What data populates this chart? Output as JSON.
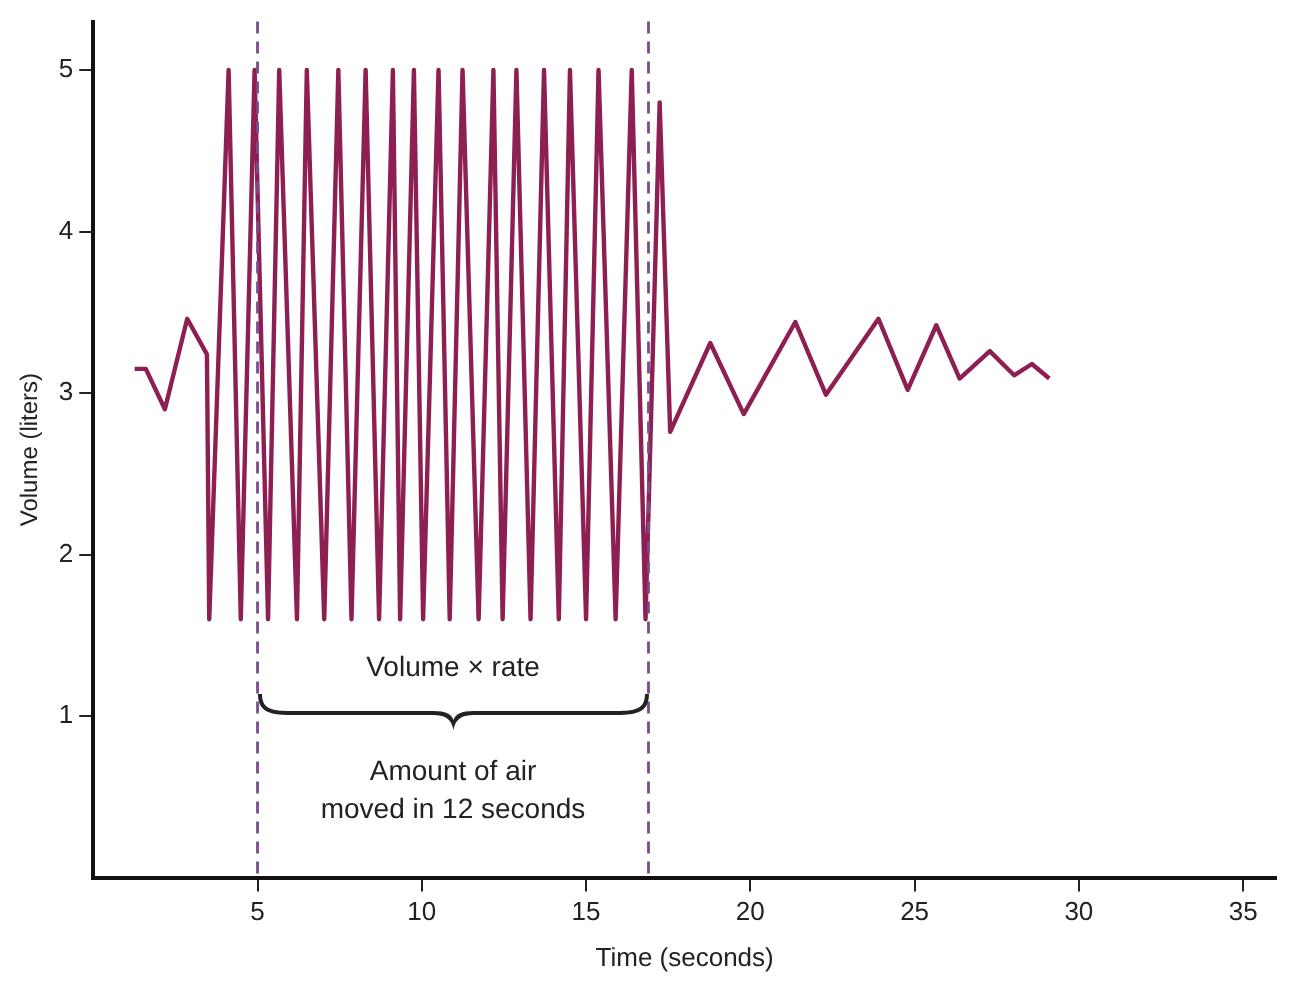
{
  "chart_data": {
    "type": "line",
    "xlabel": "Time (seconds)",
    "ylabel": "Volume (liters)",
    "series": [
      {
        "color": "#8e1f52",
        "x": [
          1.26,
          1.6,
          2.18,
          2.86,
          3.46,
          3.53,
          4.12,
          4.49,
          4.91,
          5.32,
          5.66,
          6.2,
          6.5,
          7.03,
          7.46,
          7.86,
          8.29,
          8.7,
          9.12,
          9.34,
          9.76,
          10.04,
          10.51,
          10.85,
          11.24,
          11.73,
          12.18,
          12.46,
          12.88,
          13.31,
          13.72,
          14.17,
          14.51,
          15.0,
          15.38,
          15.9,
          16.39,
          16.81,
          17.24,
          17.56,
          18.78,
          19.8,
          21.37,
          22.3,
          23.9,
          24.79,
          25.66,
          26.37,
          27.29,
          28.03,
          28.57,
          29.1
        ],
        "values": [
          3.15,
          3.15,
          2.9,
          3.46,
          3.24,
          1.6,
          5.0,
          1.6,
          5.0,
          1.6,
          5.0,
          1.6,
          5.0,
          1.6,
          5.0,
          1.6,
          5.0,
          1.6,
          5.0,
          1.6,
          5.0,
          1.6,
          5.0,
          1.6,
          5.0,
          1.6,
          5.0,
          1.6,
          5.0,
          1.6,
          5.0,
          1.6,
          5.0,
          1.6,
          5.0,
          1.6,
          5.0,
          1.6,
          4.8,
          2.76,
          3.31,
          2.87,
          3.44,
          2.99,
          3.46,
          3.02,
          3.42,
          3.09,
          3.26,
          3.11,
          3.18,
          3.09
        ]
      }
    ],
    "xlim": [
      0,
      36
    ],
    "xticks": [
      5,
      10,
      15,
      20,
      25,
      30,
      35
    ],
    "ylim": [
      0,
      5.3
    ],
    "yticks": [
      1,
      2,
      3,
      4,
      5
    ],
    "grid": false,
    "legend": false,
    "marker": "none",
    "line_style": "solid",
    "ref_lines": [
      {
        "axis": "x",
        "value": 5,
        "color": "#7b4b8c",
        "line_style": "dashed"
      },
      {
        "axis": "x",
        "value": 16.9,
        "color": "#7b4b8c",
        "line_style": "dashed"
      }
    ],
    "annotations": [
      "Volume × rate",
      "Amount of air\nmoved in 12 seconds"
    ]
  }
}
